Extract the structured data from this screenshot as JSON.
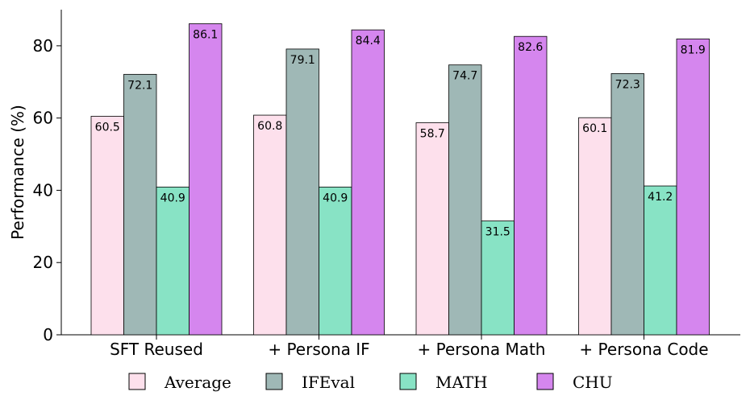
{
  "chart_data": {
    "type": "bar",
    "title": "",
    "xlabel": "",
    "ylabel": "Performance (%)",
    "ylim": [
      0,
      90
    ],
    "yticks": [
      0,
      20,
      40,
      60,
      80
    ],
    "grid": false,
    "legend_position": "bottom",
    "categories": [
      "SFT Reused",
      "+ Persona IF",
      "+ Persona Math",
      "+ Persona Code"
    ],
    "series": [
      {
        "name": "Average",
        "color": "#fde0ec",
        "values": [
          60.5,
          60.8,
          58.7,
          60.1
        ]
      },
      {
        "name": "IFEval",
        "color": "#9fb8b6",
        "values": [
          72.1,
          79.1,
          74.7,
          72.3
        ]
      },
      {
        "name": "MATH",
        "color": "#88e3c5",
        "values": [
          40.9,
          40.9,
          31.5,
          41.2
        ]
      },
      {
        "name": "CHU",
        "color": "#d586ee",
        "values": [
          86.1,
          84.4,
          82.6,
          81.9
        ]
      }
    ]
  }
}
